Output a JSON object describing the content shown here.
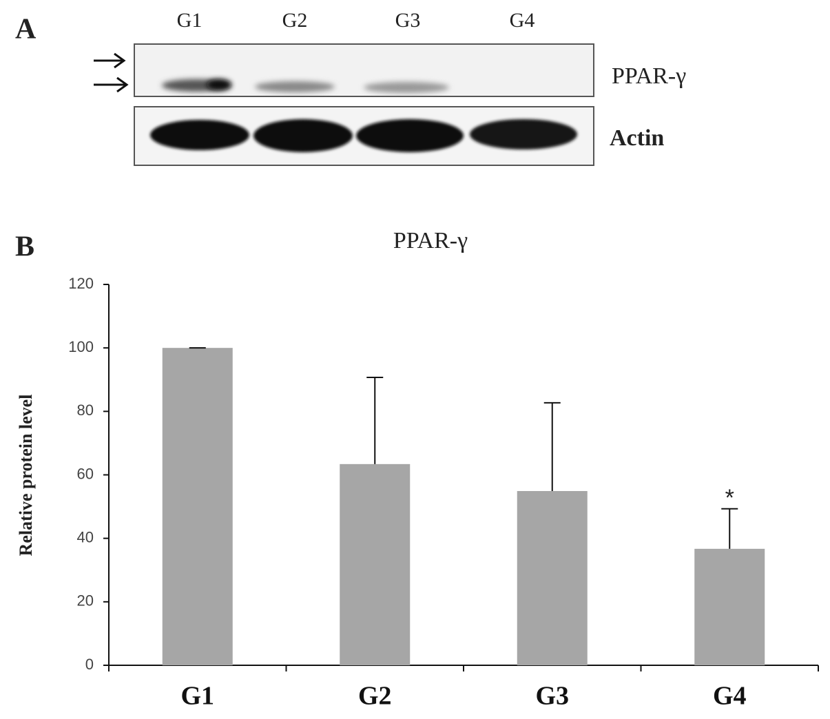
{
  "blot": {
    "panel_label": "A",
    "lanes": [
      "G1",
      "G2",
      "G3",
      "G4"
    ],
    "bands": [
      "PPAR-γ",
      "Actin"
    ]
  },
  "chart_data": {
    "type": "bar",
    "panel_label": "B",
    "title": "PPAR-γ",
    "y_label": "Relative protein level",
    "categories": [
      "G1",
      "G2",
      "G3",
      "G4"
    ],
    "values": [
      100,
      63.4,
      54.9,
      36.7
    ],
    "errors": [
      0,
      27.3,
      27.8,
      12.6
    ],
    "color": "#a6a6a6",
    "ylim": [
      0,
      120
    ],
    "yticks": [
      0,
      20,
      40,
      60,
      80,
      100,
      120
    ],
    "annotations": [
      {
        "text": "*",
        "x": "G4"
      }
    ]
  }
}
